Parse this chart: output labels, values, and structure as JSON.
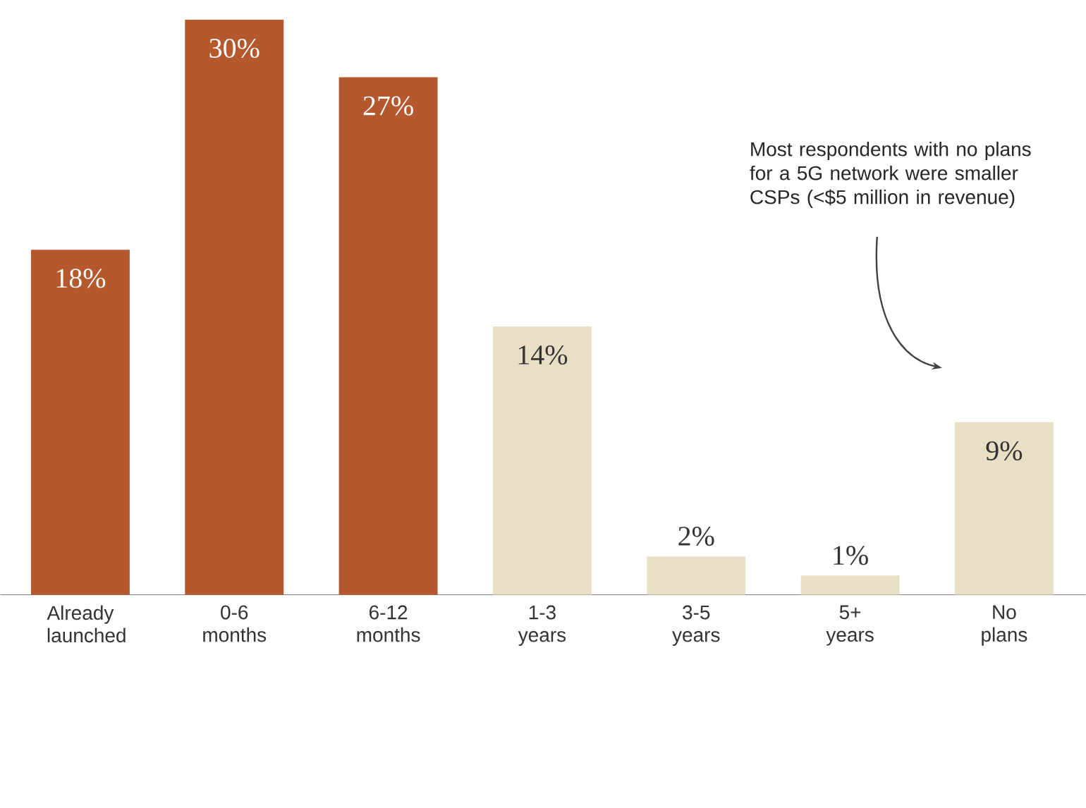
{
  "chart_data": {
    "type": "bar",
    "categories": [
      "Already launched",
      "0-6 months",
      "6-12 months",
      "1-3 years",
      "3-5 years",
      "5+ years",
      "No plans"
    ],
    "values": [
      18,
      30,
      27,
      14,
      2,
      1,
      9
    ],
    "colors": [
      "#b5582d",
      "#b5582d",
      "#b5582d",
      "#e8dfc4",
      "#e8dfc4",
      "#e8dfc4",
      "#e8dfc4"
    ],
    "value_labels": [
      "18%",
      "30%",
      "27%",
      "14%",
      "2%",
      "1%",
      "9%"
    ],
    "annotations": [
      "Most respondents with no plans for a 5G network were smaller CSPs (<$5 million in revenue)"
    ]
  }
}
